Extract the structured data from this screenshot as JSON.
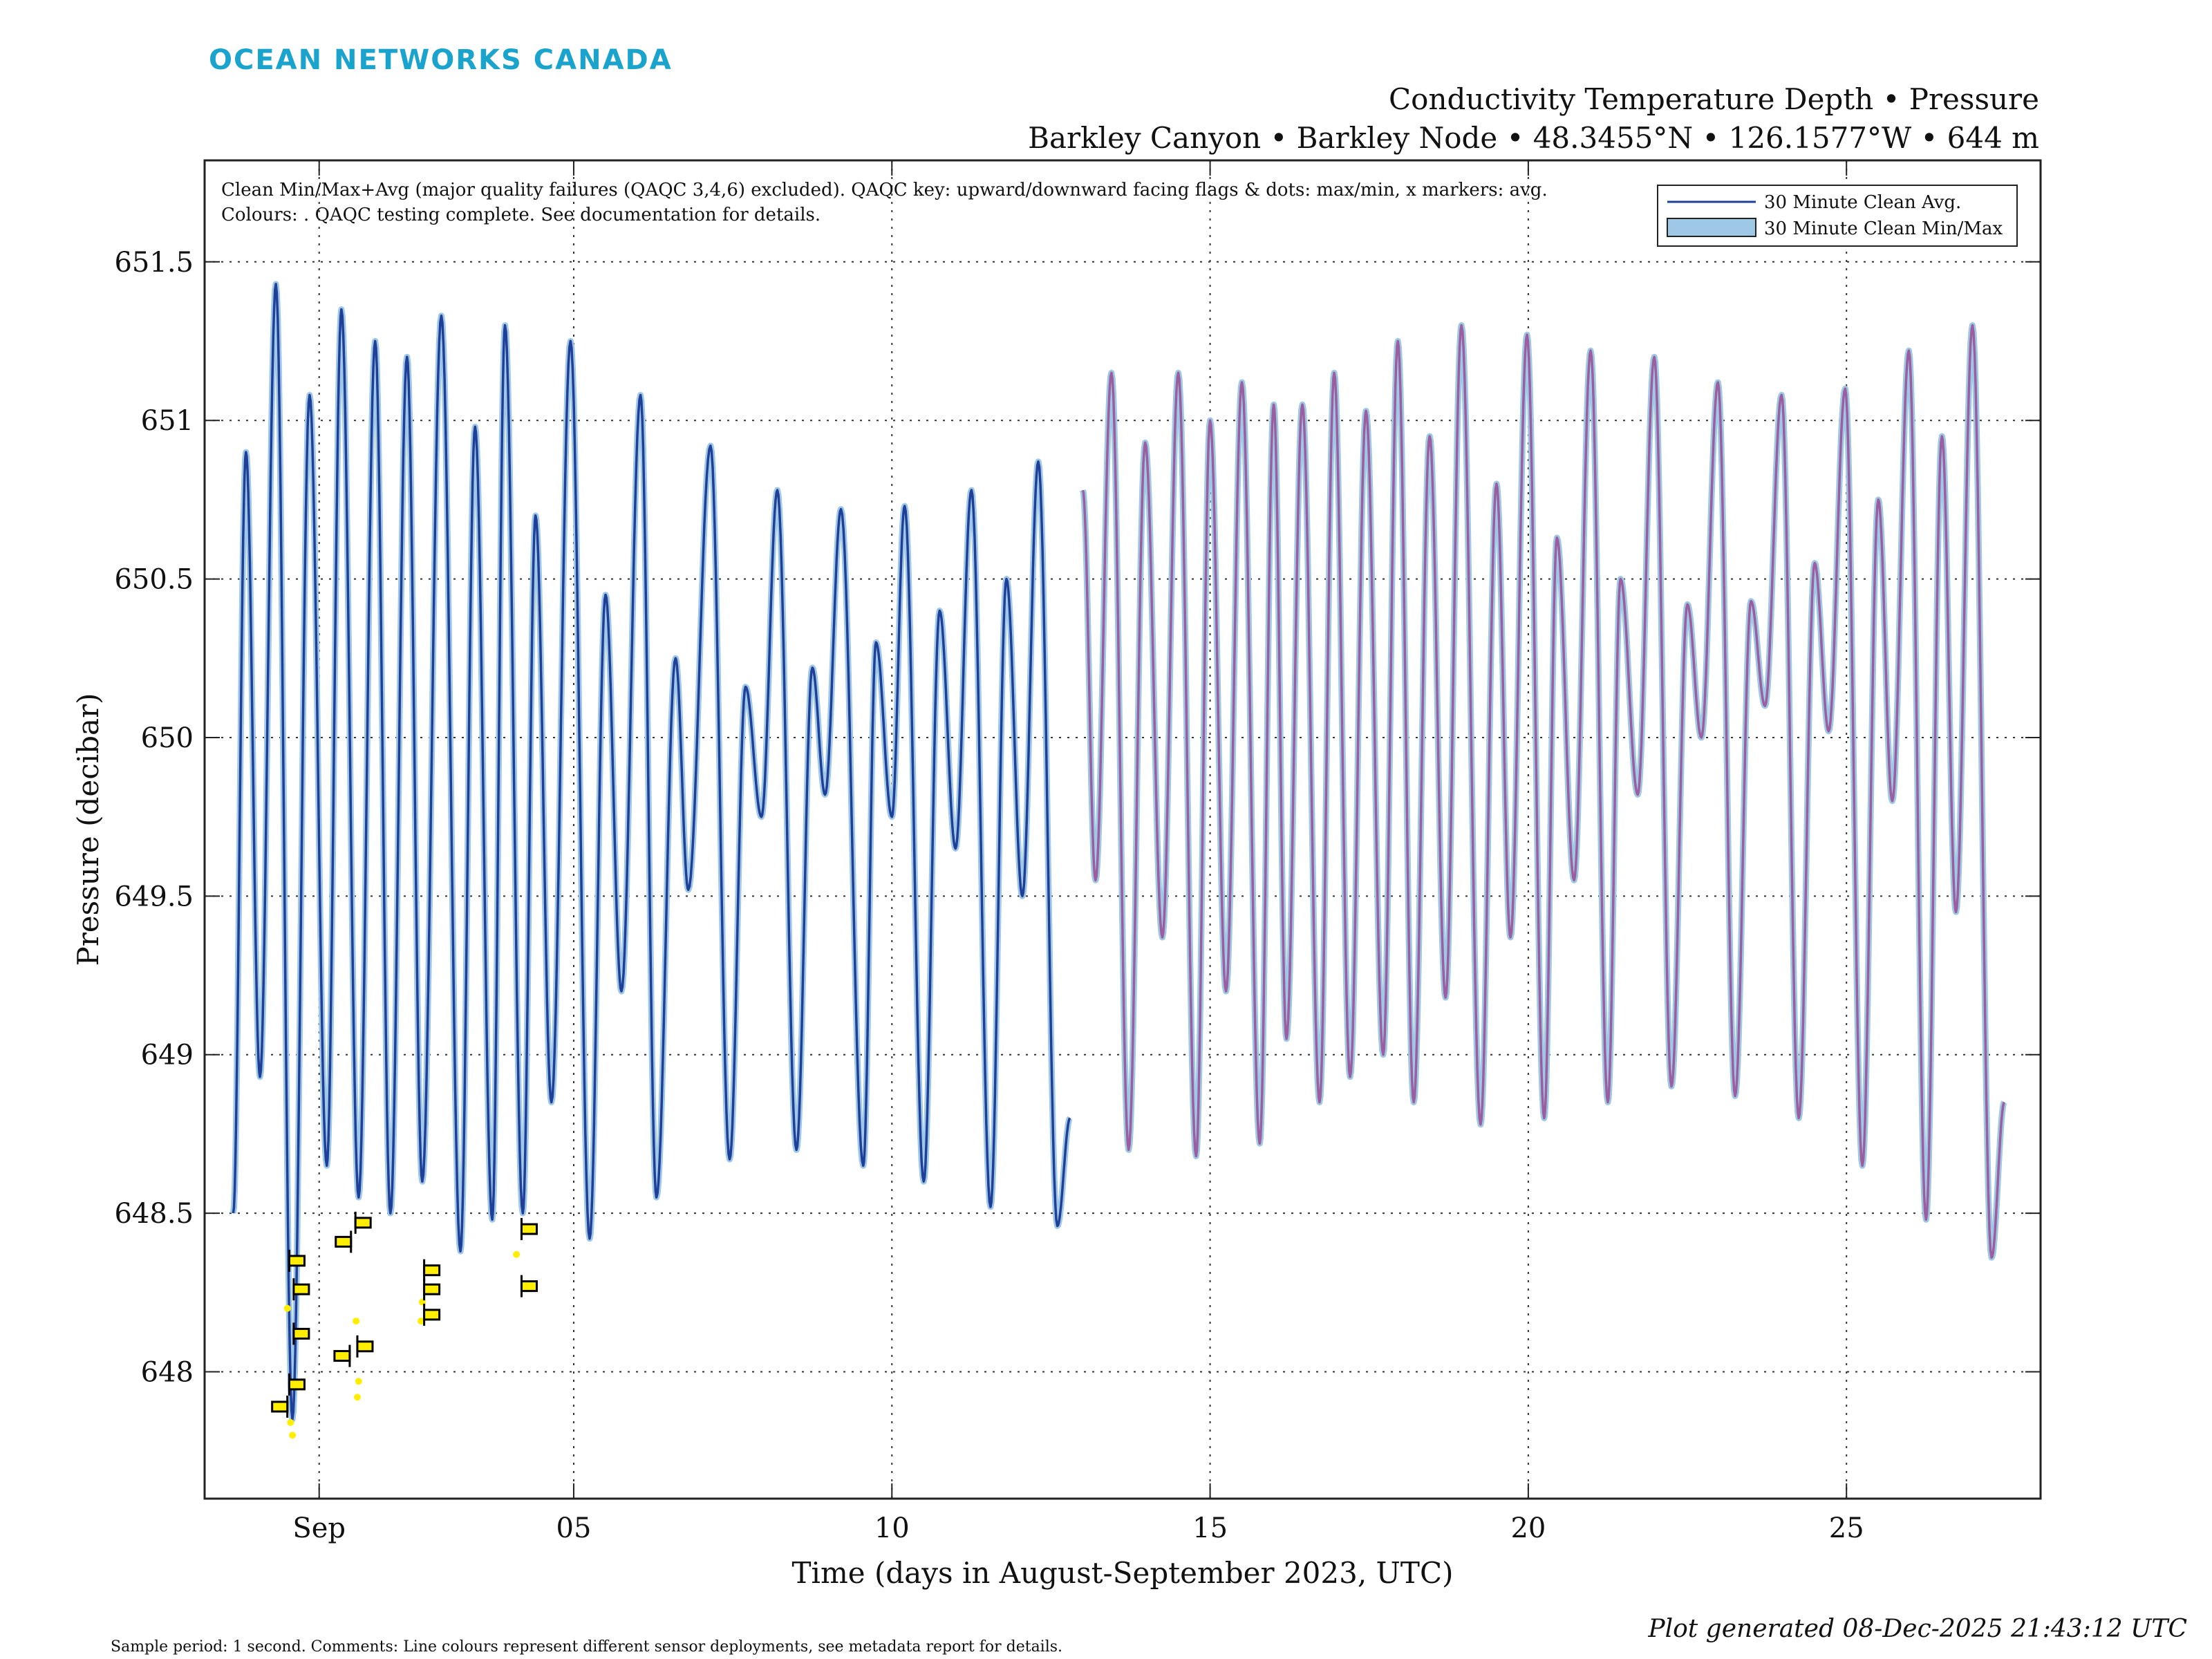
{
  "header": {
    "logo_text": "OCEAN NETWORKS CANADA",
    "title_line1": "Conductivity Temperature Depth • Pressure",
    "title_line2": "Barkley Canyon • Barkley Node • 48.3455°N • 126.1577°W • 644 m"
  },
  "notes": {
    "line1": "Clean Min/Max+Avg (major quality failures (QAQC 3,4,6) excluded). QAQC key: upward/downward facing flags & dots: max/min, x markers: avg.",
    "line2": "Colours: . QAQC testing complete. See documentation for details."
  },
  "footer": {
    "sample_note": "Sample period: 1 second. Comments: Line colours represent different sensor deployments, see metadata report for details.",
    "generated": "Plot generated 08-Dec-2025 21:43:12 UTC"
  },
  "colors": {
    "deployment1": "#1f3f99",
    "deployment2": "#9b5e9f",
    "minmax": "#9fc8e6",
    "flag": "#ffee00"
  },
  "chart_data": {
    "type": "line",
    "xlabel": "Time (days in August-September 2023, UTC)",
    "ylabel": "Pressure (decibar)",
    "xlim": [
      -1.8,
      27.05
    ],
    "ylim": [
      647.6,
      651.82
    ],
    "grid": true,
    "x_ticks": [
      {
        "value": 0,
        "label": "Sep"
      },
      {
        "value": 4,
        "label": "05"
      },
      {
        "value": 9,
        "label": "10"
      },
      {
        "value": 14,
        "label": "15"
      },
      {
        "value": 19,
        "label": "20"
      },
      {
        "value": 24,
        "label": "25"
      }
    ],
    "y_ticks": [
      {
        "value": 648,
        "label": "648"
      },
      {
        "value": 648.5,
        "label": "648.5"
      },
      {
        "value": 649,
        "label": "649"
      },
      {
        "value": 649.5,
        "label": "649.5"
      },
      {
        "value": 650,
        "label": "650"
      },
      {
        "value": 650.5,
        "label": "650.5"
      },
      {
        "value": 651,
        "label": "651"
      },
      {
        "value": 651.5,
        "label": "651.5"
      }
    ],
    "legend": {
      "position": "top-right",
      "entries": [
        "30 Minute Clean Avg.",
        "30 Minute Clean Min/Max"
      ]
    },
    "series": [
      {
        "name": "Deployment 1 (30 Minute Clean Avg.)",
        "color_key": "deployment1",
        "extrema": [
          [
            -1.35,
            648.5
          ],
          [
            -1.15,
            650.9
          ],
          [
            -0.93,
            648.93
          ],
          [
            -0.68,
            651.43
          ],
          [
            -0.42,
            647.85
          ],
          [
            -0.15,
            651.08
          ],
          [
            0.12,
            648.65
          ],
          [
            0.35,
            651.35
          ],
          [
            0.62,
            648.55
          ],
          [
            0.88,
            651.25
          ],
          [
            1.12,
            648.5
          ],
          [
            1.38,
            651.2
          ],
          [
            1.62,
            648.6
          ],
          [
            1.92,
            651.33
          ],
          [
            2.22,
            648.38
          ],
          [
            2.45,
            650.98
          ],
          [
            2.72,
            648.48
          ],
          [
            2.92,
            651.3
          ],
          [
            3.2,
            648.5
          ],
          [
            3.4,
            650.7
          ],
          [
            3.65,
            648.85
          ],
          [
            3.95,
            651.25
          ],
          [
            4.25,
            648.42
          ],
          [
            4.5,
            650.45
          ],
          [
            4.75,
            649.2
          ],
          [
            5.05,
            651.08
          ],
          [
            5.3,
            648.55
          ],
          [
            5.6,
            650.25
          ],
          [
            5.8,
            649.52
          ],
          [
            6.15,
            650.92
          ],
          [
            6.45,
            648.67
          ],
          [
            6.7,
            650.16
          ],
          [
            6.95,
            649.75
          ],
          [
            7.2,
            650.78
          ],
          [
            7.5,
            648.7
          ],
          [
            7.75,
            650.22
          ],
          [
            7.95,
            649.82
          ],
          [
            8.2,
            650.72
          ],
          [
            8.55,
            648.65
          ],
          [
            8.75,
            650.3
          ],
          [
            9.0,
            649.75
          ],
          [
            9.2,
            650.73
          ],
          [
            9.5,
            648.6
          ],
          [
            9.75,
            650.4
          ],
          [
            10.0,
            649.65
          ],
          [
            10.25,
            650.78
          ],
          [
            10.55,
            648.52
          ],
          [
            10.8,
            650.5
          ],
          [
            11.05,
            649.5
          ],
          [
            11.3,
            650.87
          ],
          [
            11.6,
            648.46
          ],
          [
            11.8,
            648.8
          ]
        ]
      },
      {
        "name": "Deployment 2 (30 Minute Clean Avg.)",
        "color_key": "deployment2",
        "extrema": [
          [
            12.0,
            650.78
          ],
          [
            12.2,
            649.55
          ],
          [
            12.45,
            651.15
          ],
          [
            12.72,
            648.7
          ],
          [
            12.98,
            650.93
          ],
          [
            13.25,
            649.37
          ],
          [
            13.5,
            651.15
          ],
          [
            13.78,
            648.68
          ],
          [
            14.0,
            651.0
          ],
          [
            14.25,
            649.2
          ],
          [
            14.5,
            651.12
          ],
          [
            14.78,
            648.72
          ],
          [
            15.0,
            651.05
          ],
          [
            15.2,
            649.05
          ],
          [
            15.45,
            651.05
          ],
          [
            15.72,
            648.85
          ],
          [
            15.95,
            651.15
          ],
          [
            16.2,
            648.93
          ],
          [
            16.45,
            651.03
          ],
          [
            16.72,
            649.0
          ],
          [
            16.95,
            651.25
          ],
          [
            17.2,
            648.85
          ],
          [
            17.45,
            650.95
          ],
          [
            17.7,
            649.18
          ],
          [
            17.95,
            651.3
          ],
          [
            18.25,
            648.78
          ],
          [
            18.5,
            650.8
          ],
          [
            18.72,
            649.37
          ],
          [
            18.98,
            651.27
          ],
          [
            19.25,
            648.8
          ],
          [
            19.45,
            650.63
          ],
          [
            19.72,
            649.55
          ],
          [
            19.98,
            651.22
          ],
          [
            20.25,
            648.85
          ],
          [
            20.45,
            650.5
          ],
          [
            20.72,
            649.82
          ],
          [
            20.98,
            651.2
          ],
          [
            21.25,
            648.9
          ],
          [
            21.5,
            650.42
          ],
          [
            21.72,
            650.0
          ],
          [
            21.98,
            651.12
          ],
          [
            22.25,
            648.87
          ],
          [
            22.5,
            650.43
          ],
          [
            22.72,
            650.1
          ],
          [
            22.98,
            651.08
          ],
          [
            23.25,
            648.8
          ],
          [
            23.5,
            650.55
          ],
          [
            23.72,
            650.02
          ],
          [
            23.98,
            651.1
          ],
          [
            24.25,
            648.65
          ],
          [
            24.5,
            650.75
          ],
          [
            24.72,
            649.8
          ],
          [
            24.98,
            651.22
          ],
          [
            25.25,
            648.48
          ],
          [
            25.5,
            650.95
          ],
          [
            25.72,
            649.45
          ],
          [
            25.98,
            651.3
          ],
          [
            26.28,
            648.36
          ],
          [
            26.48,
            648.85
          ]
        ]
      }
    ],
    "qaqc_flags": [
      {
        "x": -0.47,
        "y": 648.35,
        "dir": "right"
      },
      {
        "x": -0.4,
        "y": 648.26,
        "dir": "right"
      },
      {
        "x": -0.4,
        "y": 648.12,
        "dir": "right"
      },
      {
        "x": -0.47,
        "y": 647.96,
        "dir": "right"
      },
      {
        "x": -0.5,
        "y": 647.89,
        "dir": "left"
      },
      {
        "x": 0.5,
        "y": 648.41,
        "dir": "left"
      },
      {
        "x": 0.57,
        "y": 648.47,
        "dir": "right"
      },
      {
        "x": 0.48,
        "y": 648.05,
        "dir": "left"
      },
      {
        "x": 0.6,
        "y": 648.08,
        "dir": "right"
      },
      {
        "x": 1.65,
        "y": 648.32,
        "dir": "right"
      },
      {
        "x": 1.65,
        "y": 648.26,
        "dir": "right"
      },
      {
        "x": 1.65,
        "y": 648.18,
        "dir": "right"
      },
      {
        "x": 3.18,
        "y": 648.45,
        "dir": "right"
      },
      {
        "x": 3.18,
        "y": 648.27,
        "dir": "right"
      }
    ],
    "qaqc_dots": [
      {
        "x": -0.42,
        "y": 647.8
      },
      {
        "x": -0.45,
        "y": 647.84
      },
      {
        "x": -0.5,
        "y": 648.2
      },
      {
        "x": 0.6,
        "y": 647.92
      },
      {
        "x": 0.62,
        "y": 647.97
      },
      {
        "x": 0.58,
        "y": 648.16
      },
      {
        "x": 1.6,
        "y": 648.16
      },
      {
        "x": 1.62,
        "y": 648.22
      },
      {
        "x": 3.1,
        "y": 648.37
      }
    ]
  }
}
